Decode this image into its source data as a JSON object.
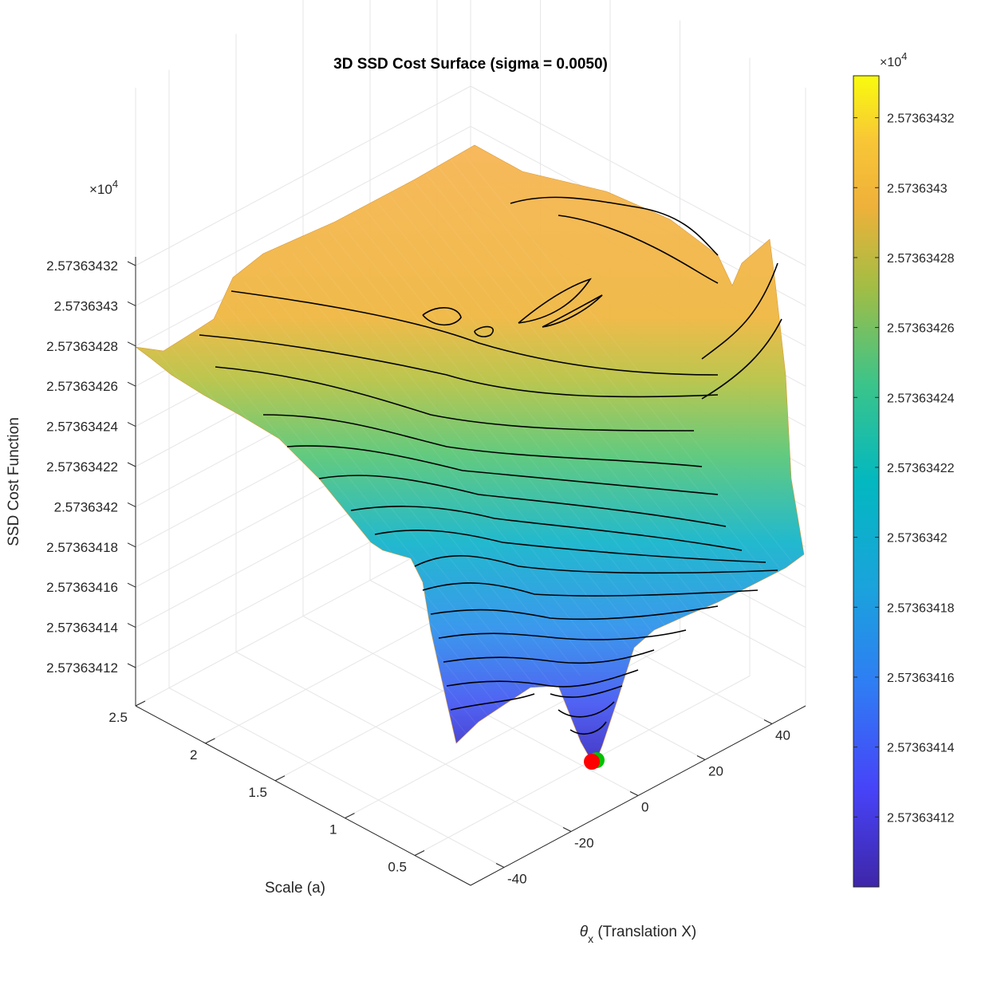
{
  "chart_data": {
    "type": "surface",
    "title": "3D SSD Cost Surface (sigma = 0.0050)",
    "xlabel_symbol": "θ",
    "xlabel_subscript": "x",
    "xlabel_text": " (Translation X)",
    "ylabel": "Scale (a)",
    "zlabel": "SSD Cost Function",
    "z_exponent_base": "×10",
    "z_exponent_power": "4",
    "x_ticks": [
      "-40",
      "-20",
      "0",
      "20",
      "40"
    ],
    "x_tick_values": [
      -40,
      -20,
      0,
      20,
      40
    ],
    "xlim": [
      -50,
      50
    ],
    "y_ticks": [
      "0.5",
      "1",
      "1.5",
      "2",
      "2.5"
    ],
    "y_tick_values": [
      0.5,
      1,
      1.5,
      2,
      2.5
    ],
    "ylim": [
      0.1,
      2.5
    ],
    "z_ticks": [
      "2.57363412",
      "2.57363414",
      "2.57363416",
      "2.57363418",
      "2.5736342",
      "2.57363422",
      "2.57363424",
      "2.57363426",
      "2.57363428",
      "2.5736343",
      "2.57363432"
    ],
    "z_tick_values": [
      2.57363412,
      2.57363414,
      2.57363416,
      2.57363418,
      2.5736342,
      2.57363422,
      2.57363424,
      2.57363426,
      2.57363428,
      2.5736343,
      2.57363432
    ],
    "zlim": [
      2.5736341,
      2.57363434
    ],
    "colorbar": {
      "exponent_base": "×10",
      "exponent_power": "4",
      "ticks": [
        "2.57363412",
        "2.57363414",
        "2.57363416",
        "2.57363418",
        "2.5736342",
        "2.57363422",
        "2.57363424",
        "2.57363426",
        "2.57363428",
        "2.5736343",
        "2.57363432"
      ],
      "tick_values": [
        2.57363412,
        2.57363414,
        2.57363416,
        2.57363418,
        2.5736342,
        2.57363422,
        2.57363424,
        2.57363426,
        2.57363428,
        2.5736343,
        2.57363432
      ],
      "range": [
        2.5736341,
        2.573634332
      ],
      "colormap": "parula"
    },
    "minimum_markers": [
      {
        "theta_x": 0,
        "scale": 1.0,
        "color": "#00c000"
      },
      {
        "theta_x": 0,
        "scale": 1.0,
        "color": "#ff0000"
      }
    ],
    "grid": true,
    "contours": true
  }
}
